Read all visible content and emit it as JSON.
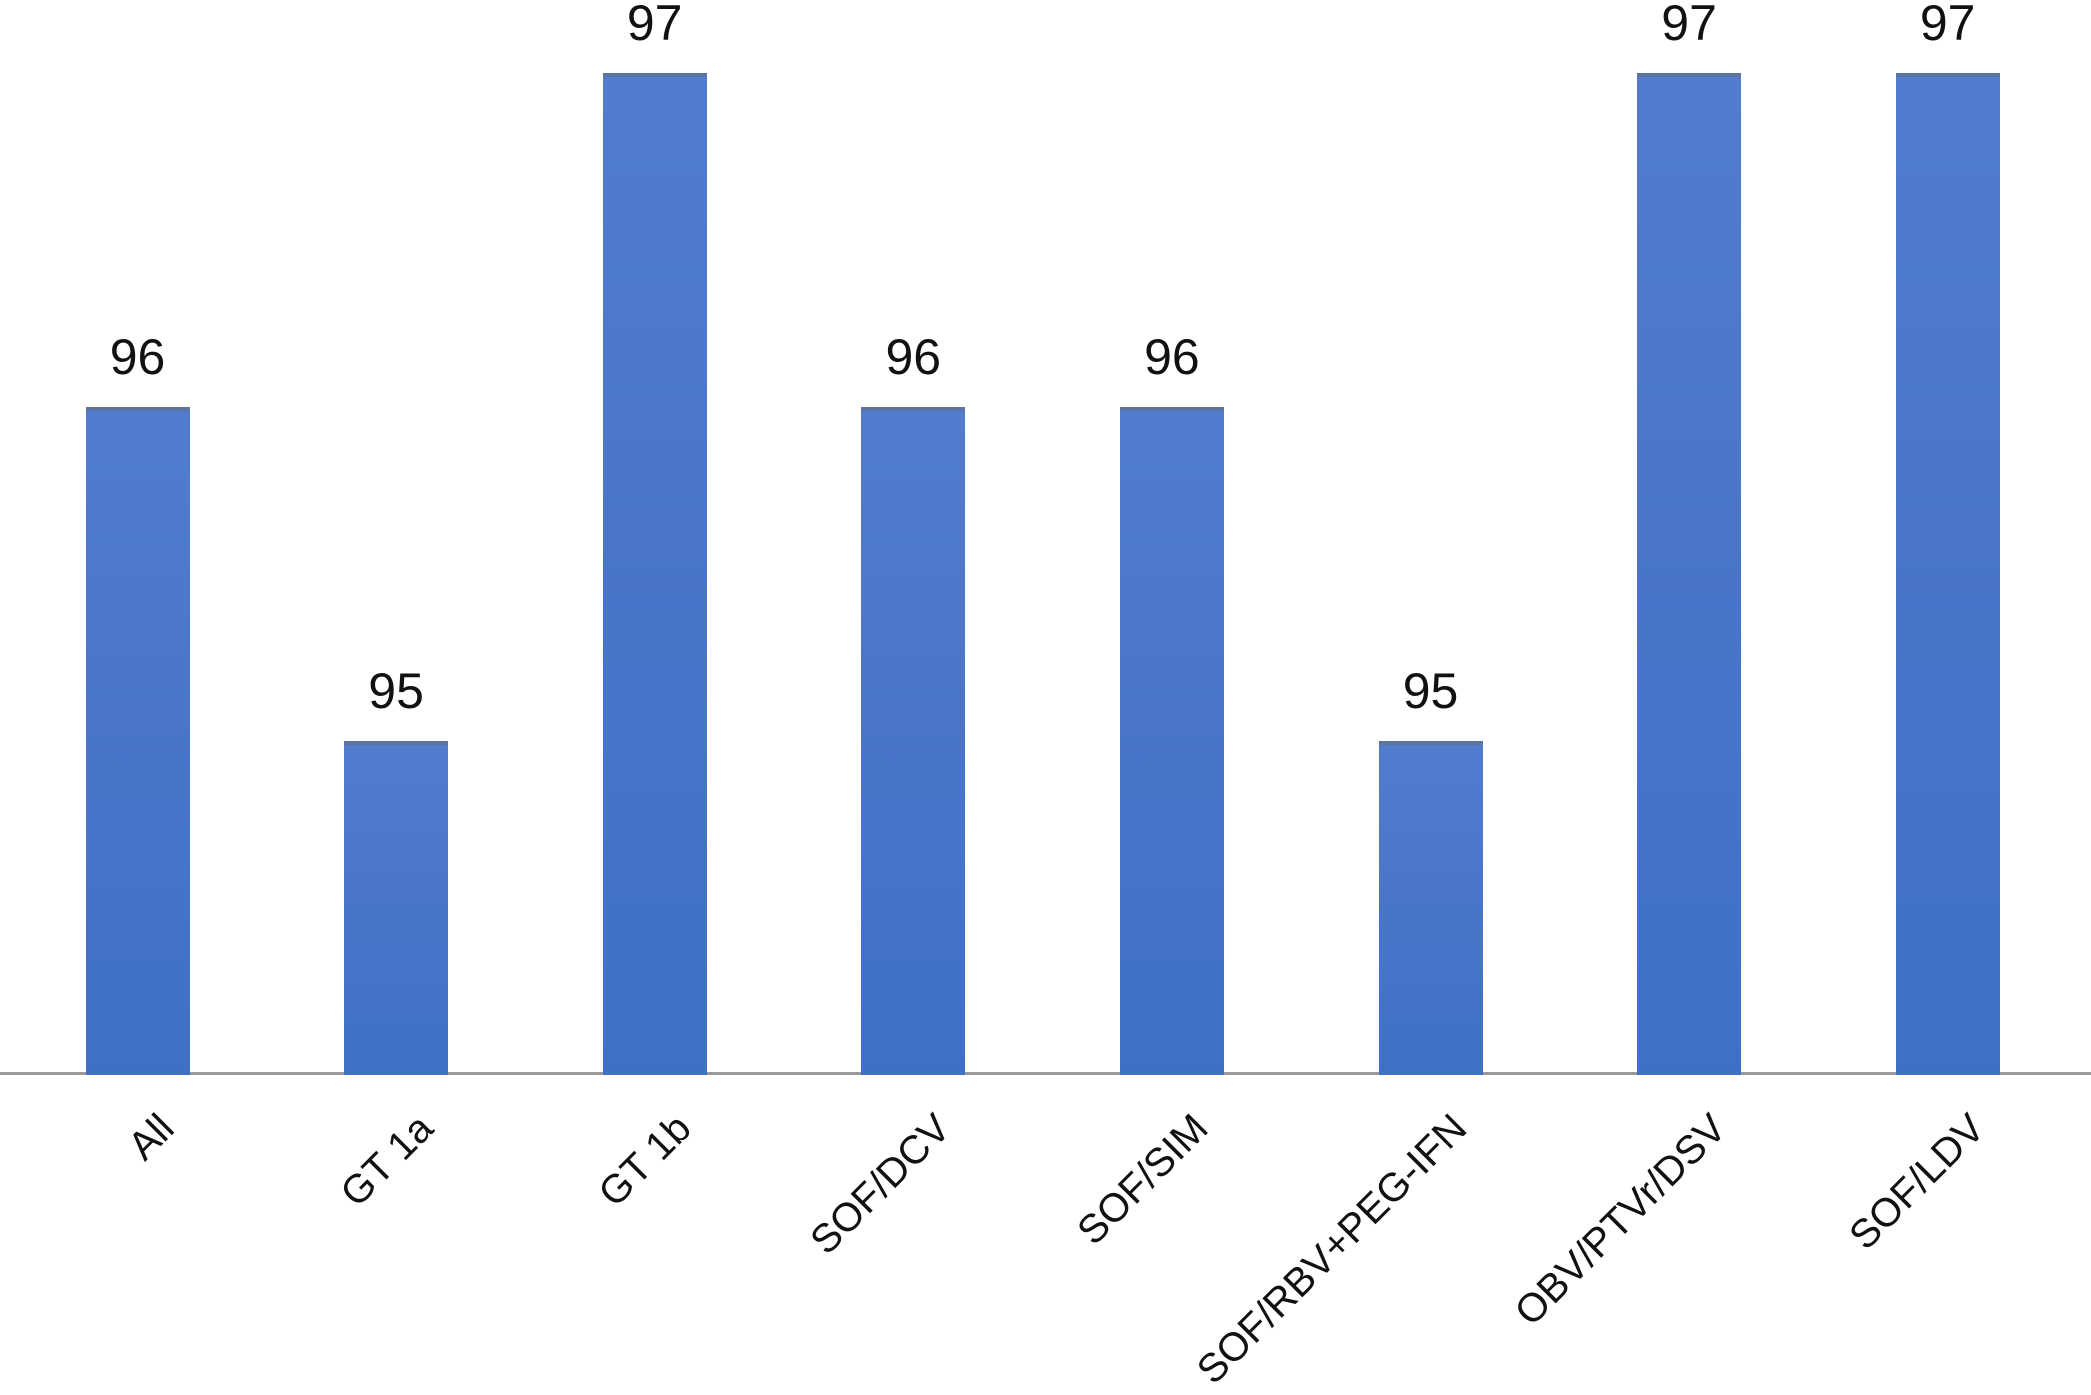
{
  "chart_data": {
    "type": "bar",
    "title": "",
    "xlabel": "",
    "ylabel": "",
    "categories": [
      "All",
      "GT 1a",
      "GT 1b",
      "SOF/DCV",
      "SOF/SIM",
      "SOF/RBV+PEG-IFN",
      "OBV/PTVr/DSV",
      "SOF/LDV"
    ],
    "values": [
      96,
      95,
      97,
      96,
      96,
      95,
      97,
      97
    ],
    "data_labels": [
      "96",
      "95",
      "97",
      "96",
      "96",
      "95",
      "97",
      "97"
    ],
    "ylim": [
      94,
      97.2
    ],
    "yaxis_visible": false,
    "grid": false,
    "legend": false,
    "x_tick_rotation_deg": -45,
    "bar_color": "#4a75c9",
    "bar_top_edge_color": "#5b74a4",
    "axis_line_color": "#9a9a9a",
    "text_color": "#111111",
    "background_color": "#ffffff"
  }
}
